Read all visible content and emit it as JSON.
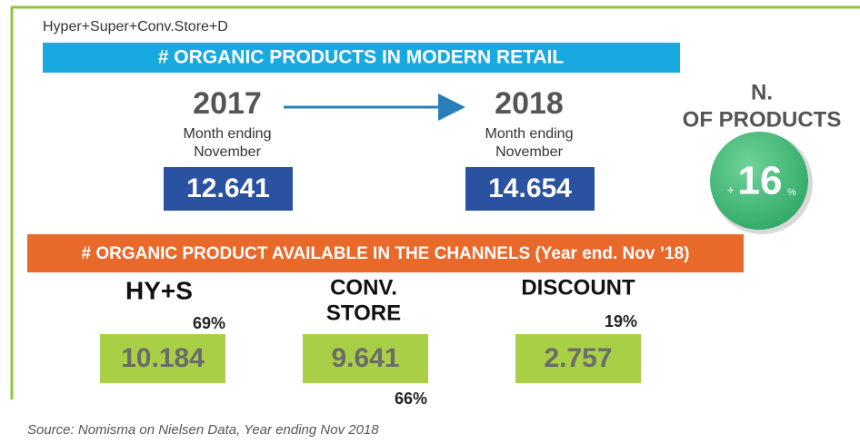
{
  "header": {
    "scope": "Hyper+Super+Conv.Store+D",
    "banner": "# ORGANIC PRODUCTS IN MODERN RETAIL"
  },
  "years": [
    {
      "year": "2017",
      "period": [
        "Month ending",
        "November"
      ],
      "value": "12.641"
    },
    {
      "year": "2018",
      "period": [
        "Month ending",
        "November"
      ],
      "value": "14.654"
    }
  ],
  "growth": {
    "label": [
      "N.",
      "OF PRODUCTS"
    ],
    "sign": "+",
    "value": "16",
    "unit": "%"
  },
  "channels_banner": "# ORGANIC PRODUCT AVAILABLE IN THE CHANNELS (Year end. Nov ’18)",
  "channels": [
    {
      "name": [
        "HY+S"
      ],
      "share": "69%",
      "value": "10.184"
    },
    {
      "name": [
        "CONV.",
        "STORE"
      ],
      "share": "66%",
      "value": "9.641"
    },
    {
      "name": [
        "DISCOUNT"
      ],
      "share": "19%",
      "value": "2.757"
    }
  ],
  "source": "Source: Nomisma on Nielsen Data, Year ending Nov 2018"
}
